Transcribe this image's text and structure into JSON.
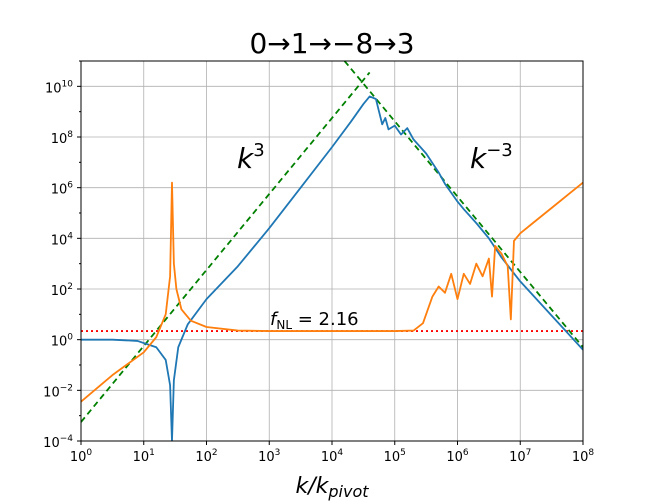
{
  "chart_data": {
    "type": "line",
    "title": "0→1→−8→3",
    "xlabel": "k/k",
    "xlabel_sub": "pivot",
    "ylabel": "",
    "xscale": "log",
    "yscale": "log",
    "xlim": [
      1,
      100000000
    ],
    "ylim": [
      0.0001,
      100000000000
    ],
    "grid": true,
    "x_ticks": [
      {
        "base": "10",
        "exp": "0"
      },
      {
        "base": "10",
        "exp": "1"
      },
      {
        "base": "10",
        "exp": "2"
      },
      {
        "base": "10",
        "exp": "3"
      },
      {
        "base": "10",
        "exp": "4"
      },
      {
        "base": "10",
        "exp": "5"
      },
      {
        "base": "10",
        "exp": "6"
      },
      {
        "base": "10",
        "exp": "7"
      },
      {
        "base": "10",
        "exp": "8"
      }
    ],
    "y_ticks": [
      {
        "base": "10",
        "exp": "−4"
      },
      {
        "base": "10",
        "exp": "−2"
      },
      {
        "base": "10",
        "exp": "0"
      },
      {
        "base": "10",
        "exp": "2"
      },
      {
        "base": "10",
        "exp": "4"
      },
      {
        "base": "10",
        "exp": "6"
      },
      {
        "base": "10",
        "exp": "8"
      },
      {
        "base": "10",
        "exp": "10"
      }
    ],
    "annotations": {
      "k3": {
        "base": "k",
        "exp": "3"
      },
      "kminus3": {
        "base": "k",
        "exp": "−3"
      },
      "fnl_symbol": "f",
      "fnl_sub": "NL",
      "fnl_value": " = 2.16"
    },
    "series": [
      {
        "color": "#1f77b4",
        "style": "solid",
        "log10_points": [
          [
            0,
            0
          ],
          [
            0.5,
            0
          ],
          [
            0.9,
            -0.05
          ],
          [
            1.2,
            -0.3
          ],
          [
            1.35,
            -0.8
          ],
          [
            1.42,
            -1.8
          ],
          [
            1.45,
            -4.0
          ],
          [
            1.48,
            -1.6
          ],
          [
            1.55,
            -0.3
          ],
          [
            1.7,
            0.6
          ],
          [
            2.0,
            1.6
          ],
          [
            2.5,
            2.9
          ],
          [
            2.8,
            3.8
          ],
          [
            3.0,
            4.4
          ],
          [
            3.5,
            6.0
          ],
          [
            4.0,
            7.6
          ],
          [
            4.3,
            8.6
          ],
          [
            4.5,
            9.3
          ],
          [
            4.6,
            9.6
          ],
          [
            4.7,
            9.5
          ],
          [
            4.75,
            9.0
          ],
          [
            4.8,
            8.5
          ],
          [
            4.85,
            8.75
          ],
          [
            4.9,
            8.3
          ],
          [
            5.0,
            8.45
          ],
          [
            5.1,
            8.1
          ],
          [
            5.2,
            8.35
          ],
          [
            5.3,
            7.9
          ],
          [
            5.5,
            7.35
          ],
          [
            5.7,
            6.6
          ],
          [
            5.8,
            6.15
          ],
          [
            5.9,
            5.8
          ],
          [
            6.0,
            5.45
          ],
          [
            6.1,
            5.15
          ],
          [
            6.3,
            4.6
          ],
          [
            6.5,
            4.0
          ],
          [
            6.7,
            3.25
          ],
          [
            7.0,
            2.3
          ],
          [
            7.5,
            0.95
          ],
          [
            8.0,
            -0.4
          ]
        ]
      },
      {
        "color": "#ff7f0e",
        "style": "solid",
        "log10_points": [
          [
            0,
            -2.45
          ],
          [
            0.5,
            -1.4
          ],
          [
            1.0,
            -0.5
          ],
          [
            1.2,
            0.1
          ],
          [
            1.35,
            1.0
          ],
          [
            1.42,
            2.5
          ],
          [
            1.45,
            6.2
          ],
          [
            1.48,
            3.0
          ],
          [
            1.52,
            2.0
          ],
          [
            1.6,
            1.2
          ],
          [
            1.75,
            0.75
          ],
          [
            2.0,
            0.5
          ],
          [
            2.5,
            0.36
          ],
          [
            3.0,
            0.34
          ],
          [
            4.0,
            0.34
          ],
          [
            5.0,
            0.34
          ],
          [
            5.3,
            0.36
          ],
          [
            5.45,
            0.65
          ],
          [
            5.6,
            1.7
          ],
          [
            5.7,
            2.1
          ],
          [
            5.8,
            1.85
          ],
          [
            5.9,
            2.6
          ],
          [
            6.0,
            1.6
          ],
          [
            6.1,
            2.6
          ],
          [
            6.2,
            2.2
          ],
          [
            6.3,
            3.0
          ],
          [
            6.4,
            2.5
          ],
          [
            6.5,
            3.2
          ],
          [
            6.55,
            1.7
          ],
          [
            6.6,
            3.7
          ],
          [
            6.7,
            3.4
          ],
          [
            6.8,
            2.9
          ],
          [
            6.85,
            0.8
          ],
          [
            6.9,
            3.9
          ],
          [
            7.0,
            4.2
          ],
          [
            7.2,
            4.6
          ],
          [
            7.4,
            5.0
          ],
          [
            7.6,
            5.4
          ],
          [
            7.8,
            5.8
          ],
          [
            8.0,
            6.2
          ]
        ]
      },
      {
        "name": "k^3 fit",
        "color": "#008000",
        "style": "dashed",
        "log10_points": [
          [
            0,
            -3.25
          ],
          [
            4.6,
            10.55
          ]
        ]
      },
      {
        "name": "k^-3 fit",
        "color": "#008000",
        "style": "dashed",
        "log10_points": [
          [
            4.2,
            11.0
          ],
          [
            8.0,
            -0.3
          ]
        ]
      },
      {
        "name": "f_NL level",
        "color": "#ff0000",
        "style": "dotted",
        "log10_points": [
          [
            0,
            0.34
          ],
          [
            8.0,
            0.34
          ]
        ]
      }
    ]
  }
}
